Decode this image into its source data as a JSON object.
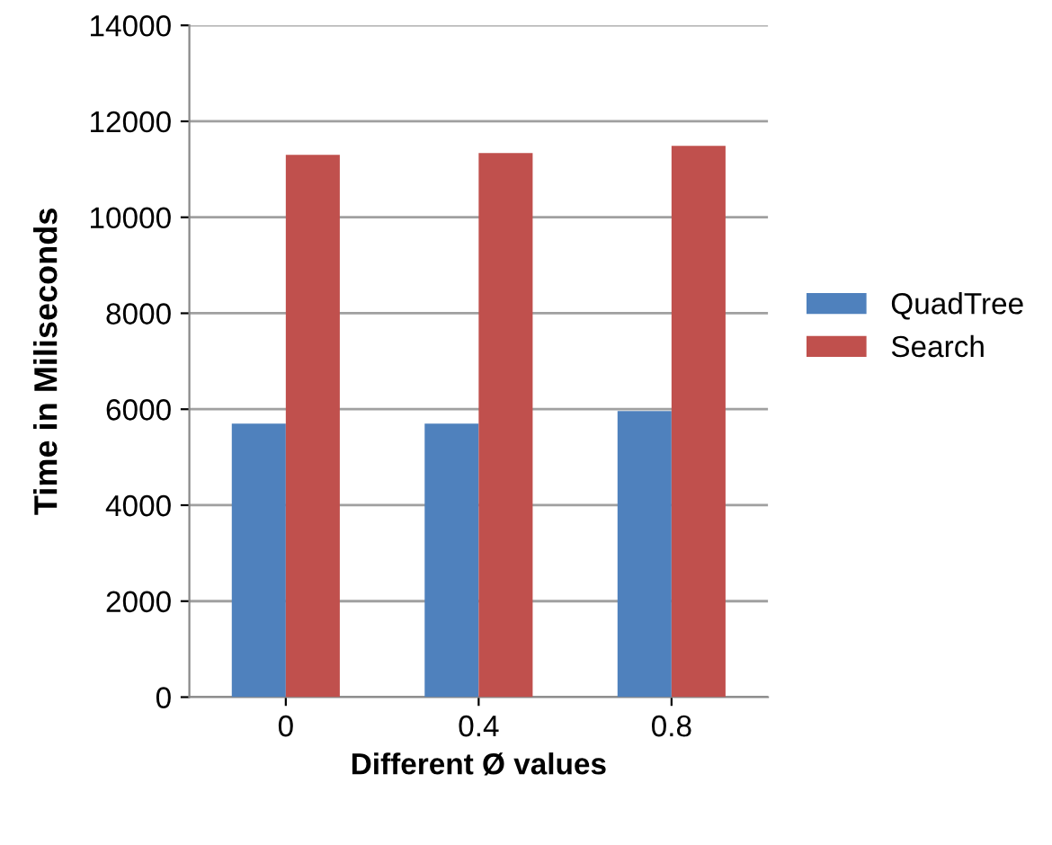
{
  "chart_data": {
    "type": "bar",
    "xlabel": "Different Ø values",
    "ylabel": "Time in Miliseconds",
    "categories": [
      "0",
      "0.4",
      "0.8"
    ],
    "series": [
      {
        "name": "QuadTree",
        "color": "#4f81bd",
        "values": [
          5700,
          5700,
          5960
        ]
      },
      {
        "name": "Search",
        "color": "#c0504d",
        "values": [
          11300,
          11340,
          11490
        ]
      }
    ],
    "ylim": [
      0,
      14000
    ],
    "yticks": [
      0,
      2000,
      4000,
      6000,
      8000,
      10000,
      12000,
      14000
    ],
    "grid": "y",
    "legend": "right"
  }
}
